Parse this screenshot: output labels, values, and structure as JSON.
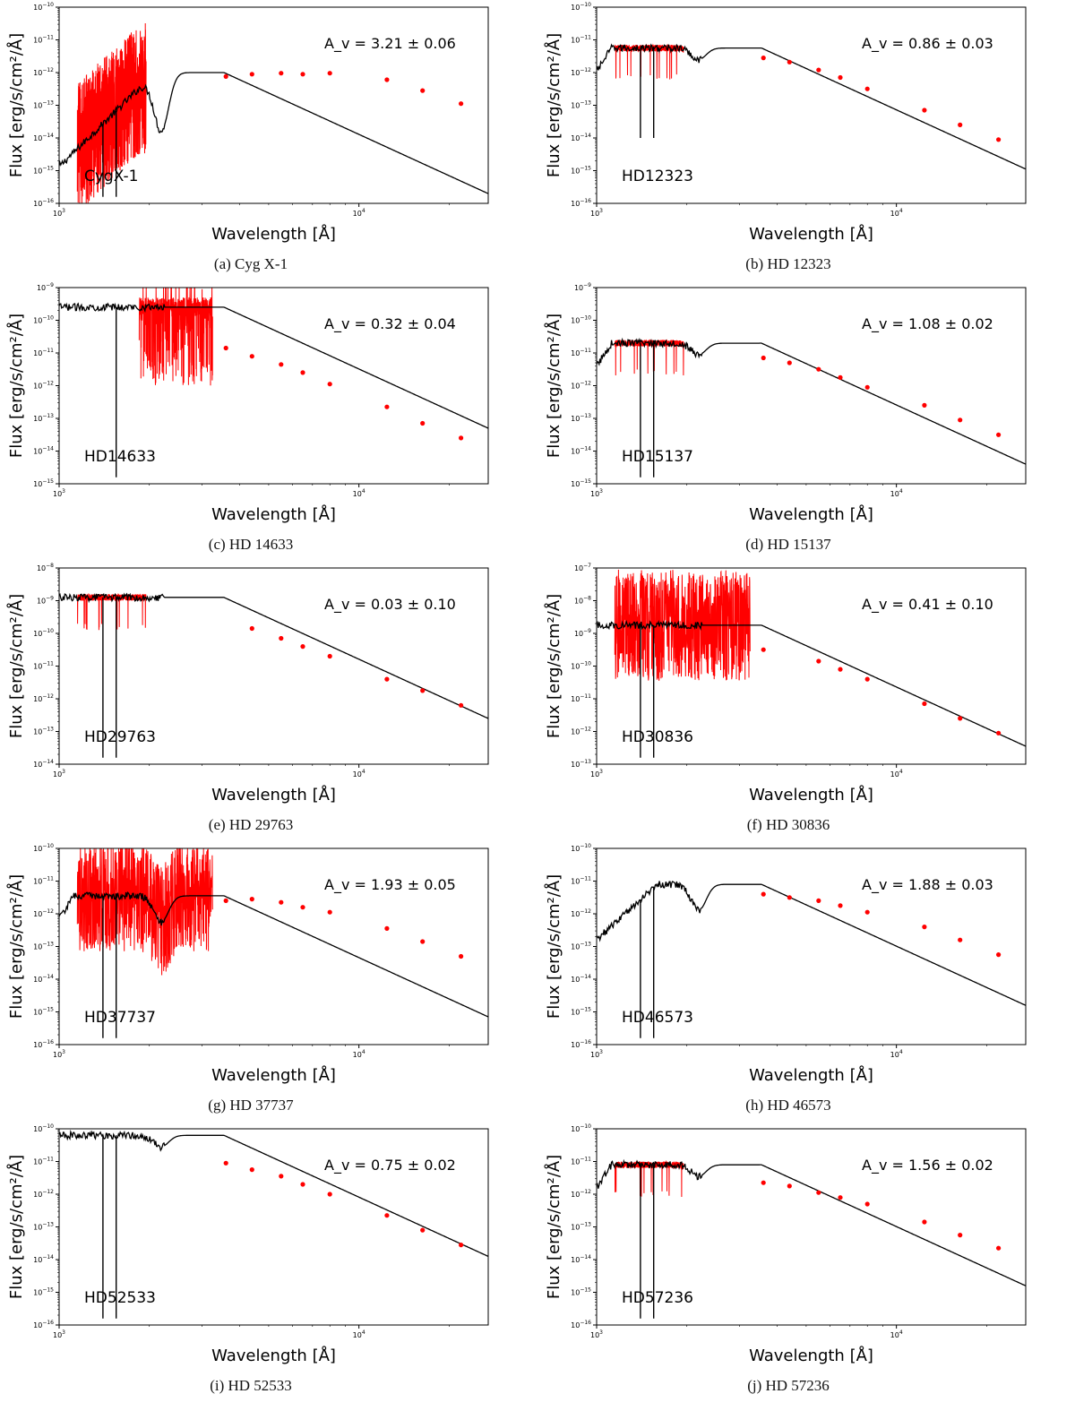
{
  "chart_data": [
    {
      "type": "line",
      "panel": "a",
      "caption": "(a) Cyg X-1",
      "star": "CygX-1",
      "av_text": "A_v = 3.21 ± 0.06",
      "av_value": 3.21,
      "av_err": 0.06,
      "xlabel": "Wavelength [Å]",
      "ylabel": "Flux [erg/s/cm²/Å]",
      "xlim": [
        1000,
        27000
      ],
      "ylim_exp": [
        -16,
        -10
      ],
      "peak_exp": -12.0,
      "bump": true,
      "uv_obs": "noisy",
      "photometry": [
        {
          "w": 3600,
          "f": -12.12
        },
        {
          "w": 4400,
          "f": -12.05
        },
        {
          "w": 5500,
          "f": -12.02
        },
        {
          "w": 6500,
          "f": -12.05
        },
        {
          "w": 8000,
          "f": -12.02
        },
        {
          "w": 12400,
          "f": -12.22
        },
        {
          "w": 16300,
          "f": -12.55
        },
        {
          "w": 21900,
          "f": -12.95
        }
      ]
    },
    {
      "type": "line",
      "panel": "b",
      "caption": "(b) HD 12323",
      "star": "HD12323",
      "av_text": "A_v = 0.86 ± 0.03",
      "av_value": 0.86,
      "av_err": 0.03,
      "xlabel": "Wavelength [Å]",
      "ylabel": "Flux [erg/s/cm²/Å]",
      "xlim": [
        1000,
        27000
      ],
      "ylim_exp": [
        -16,
        -10
      ],
      "peak_exp": -11.25,
      "bump": true,
      "uv_obs": "smooth",
      "photometry": [
        {
          "w": 3600,
          "f": -11.55
        },
        {
          "w": 4400,
          "f": -11.68
        },
        {
          "w": 5500,
          "f": -11.92
        },
        {
          "w": 6500,
          "f": -12.15
        },
        {
          "w": 8000,
          "f": -12.5
        },
        {
          "w": 12400,
          "f": -13.15
        },
        {
          "w": 16300,
          "f": -13.6
        },
        {
          "w": 21900,
          "f": -14.05
        }
      ]
    },
    {
      "type": "line",
      "panel": "c",
      "caption": "(c) HD 14633",
      "star": "HD14633",
      "av_text": "A_v = 0.32 ± 0.04",
      "av_value": 0.32,
      "av_err": 0.04,
      "xlabel": "Wavelength [Å]",
      "ylabel": "Flux [erg/s/cm²/Å]",
      "xlim": [
        1000,
        27000
      ],
      "ylim_exp": [
        -15,
        -9
      ],
      "peak_exp": -9.6,
      "bump": false,
      "uv_obs": "absorption",
      "photometry": [
        {
          "w": 3600,
          "f": -10.85
        },
        {
          "w": 4400,
          "f": -11.1
        },
        {
          "w": 5500,
          "f": -11.35
        },
        {
          "w": 6500,
          "f": -11.6
        },
        {
          "w": 8000,
          "f": -11.95
        },
        {
          "w": 12400,
          "f": -12.65
        },
        {
          "w": 16300,
          "f": -13.15
        },
        {
          "w": 21900,
          "f": -13.6
        }
      ]
    },
    {
      "type": "line",
      "panel": "d",
      "caption": "(d) HD 15137",
      "star": "HD15137",
      "av_text": "A_v = 1.08 ± 0.02",
      "av_value": 1.08,
      "av_err": 0.02,
      "xlabel": "Wavelength [Å]",
      "ylabel": "Flux [erg/s/cm²/Å]",
      "xlim": [
        1000,
        27000
      ],
      "ylim_exp": [
        -15,
        -9
      ],
      "peak_exp": -10.7,
      "bump": true,
      "uv_obs": "smooth",
      "photometry": [
        {
          "w": 3600,
          "f": -11.15
        },
        {
          "w": 4400,
          "f": -11.3
        },
        {
          "w": 5500,
          "f": -11.5
        },
        {
          "w": 6500,
          "f": -11.75
        },
        {
          "w": 8000,
          "f": -12.05
        },
        {
          "w": 12400,
          "f": -12.6
        },
        {
          "w": 16300,
          "f": -13.05
        },
        {
          "w": 21900,
          "f": -13.5
        }
      ]
    },
    {
      "type": "line",
      "panel": "e",
      "caption": "(e) HD 29763",
      "star": "HD29763",
      "av_text": "A_v = 0.03 ± 0.10",
      "av_value": 0.03,
      "av_err": 0.1,
      "xlabel": "Wavelength [Å]",
      "ylabel": "Flux [erg/s/cm²/Å]",
      "xlim": [
        1000,
        27000
      ],
      "ylim_exp": [
        -14,
        -8
      ],
      "peak_exp": -8.9,
      "bump": false,
      "uv_obs": "smooth",
      "photometry": [
        {
          "w": 4400,
          "f": -9.85
        },
        {
          "w": 5500,
          "f": -10.15
        },
        {
          "w": 6500,
          "f": -10.4
        },
        {
          "w": 8000,
          "f": -10.7
        },
        {
          "w": 12400,
          "f": -11.4
        },
        {
          "w": 16300,
          "f": -11.75
        },
        {
          "w": 21900,
          "f": -12.2
        }
      ]
    },
    {
      "type": "line",
      "panel": "f",
      "caption": "(f) HD 30836",
      "star": "HD30836",
      "av_text": "A_v = 0.41 ± 0.10",
      "av_value": 0.41,
      "av_err": 0.1,
      "xlabel": "Wavelength [Å]",
      "ylabel": "Flux [erg/s/cm²/Å]",
      "xlim": [
        1000,
        27000
      ],
      "ylim_exp": [
        -13,
        -7
      ],
      "peak_exp": -8.75,
      "bump": false,
      "uv_obs": "noisy",
      "photometry": [
        {
          "w": 3600,
          "f": -9.5
        },
        {
          "w": 5500,
          "f": -9.85
        },
        {
          "w": 6500,
          "f": -10.1
        },
        {
          "w": 8000,
          "f": -10.4
        },
        {
          "w": 12400,
          "f": -11.15
        },
        {
          "w": 16300,
          "f": -11.6
        },
        {
          "w": 21900,
          "f": -12.05
        }
      ]
    },
    {
      "type": "line",
      "panel": "g",
      "caption": "(g) HD 37737",
      "star": "HD37737",
      "av_text": "A_v = 1.93 ± 0.05",
      "av_value": 1.93,
      "av_err": 0.05,
      "xlabel": "Wavelength [Å]",
      "ylabel": "Flux [erg/s/cm²/Å]",
      "xlim": [
        1000,
        27000
      ],
      "ylim_exp": [
        -16,
        -10
      ],
      "peak_exp": -11.45,
      "bump": true,
      "uv_obs": "noisy",
      "photometry": [
        {
          "w": 3600,
          "f": -11.6
        },
        {
          "w": 4400,
          "f": -11.55
        },
        {
          "w": 5500,
          "f": -11.65
        },
        {
          "w": 6500,
          "f": -11.8
        },
        {
          "w": 8000,
          "f": -11.95
        },
        {
          "w": 12400,
          "f": -12.45
        },
        {
          "w": 16300,
          "f": -12.85
        },
        {
          "w": 21900,
          "f": -13.3
        }
      ]
    },
    {
      "type": "line",
      "panel": "h",
      "caption": "(h) HD 46573",
      "star": "HD46573",
      "av_text": "A_v = 1.88 ± 0.03",
      "av_value": 1.88,
      "av_err": 0.03,
      "xlabel": "Wavelength [Å]",
      "ylabel": "Flux [erg/s/cm²/Å]",
      "xlim": [
        1000,
        27000
      ],
      "ylim_exp": [
        -16,
        -10
      ],
      "peak_exp": -11.1,
      "bump": true,
      "uv_obs": "none",
      "photometry": [
        {
          "w": 3600,
          "f": -11.4
        },
        {
          "w": 4400,
          "f": -11.5
        },
        {
          "w": 5500,
          "f": -11.6
        },
        {
          "w": 6500,
          "f": -11.75
        },
        {
          "w": 8000,
          "f": -11.95
        },
        {
          "w": 12400,
          "f": -12.4
        },
        {
          "w": 16300,
          "f": -12.8
        },
        {
          "w": 21900,
          "f": -13.25
        }
      ]
    },
    {
      "type": "line",
      "panel": "i",
      "caption": "(i) HD 52533",
      "star": "HD52533",
      "av_text": "A_v = 0.75 ± 0.02",
      "av_value": 0.75,
      "av_err": 0.02,
      "xlabel": "Wavelength [Å]",
      "ylabel": "Flux [erg/s/cm²/Å]",
      "xlim": [
        1000,
        27000
      ],
      "ylim_exp": [
        -16,
        -10
      ],
      "peak_exp": -10.2,
      "bump": true,
      "uv_obs": "none",
      "photometry": [
        {
          "w": 3600,
          "f": -11.05
        },
        {
          "w": 4400,
          "f": -11.25
        },
        {
          "w": 5500,
          "f": -11.45
        },
        {
          "w": 6500,
          "f": -11.7
        },
        {
          "w": 8000,
          "f": -12.0
        },
        {
          "w": 12400,
          "f": -12.65
        },
        {
          "w": 16300,
          "f": -13.1
        },
        {
          "w": 21900,
          "f": -13.55
        }
      ]
    },
    {
      "type": "line",
      "panel": "j",
      "caption": "(j) HD 57236",
      "star": "HD57236",
      "av_text": "A_v = 1.56 ± 0.02",
      "av_value": 1.56,
      "av_err": 0.02,
      "xlabel": "Wavelength [Å]",
      "ylabel": "Flux [erg/s/cm²/Å]",
      "xlim": [
        1000,
        27000
      ],
      "ylim_exp": [
        -16,
        -10
      ],
      "peak_exp": -11.1,
      "bump": true,
      "uv_obs": "smooth",
      "photometry": [
        {
          "w": 3600,
          "f": -11.65
        },
        {
          "w": 4400,
          "f": -11.75
        },
        {
          "w": 5500,
          "f": -11.95
        },
        {
          "w": 6500,
          "f": -12.1
        },
        {
          "w": 8000,
          "f": -12.3
        },
        {
          "w": 12400,
          "f": -12.85
        },
        {
          "w": 16300,
          "f": -13.25
        },
        {
          "w": 21900,
          "f": -13.65
        }
      ]
    }
  ],
  "style": {
    "model_color": "#000000",
    "obs_color": "#ff0000",
    "phot_color": "#ff0000"
  }
}
